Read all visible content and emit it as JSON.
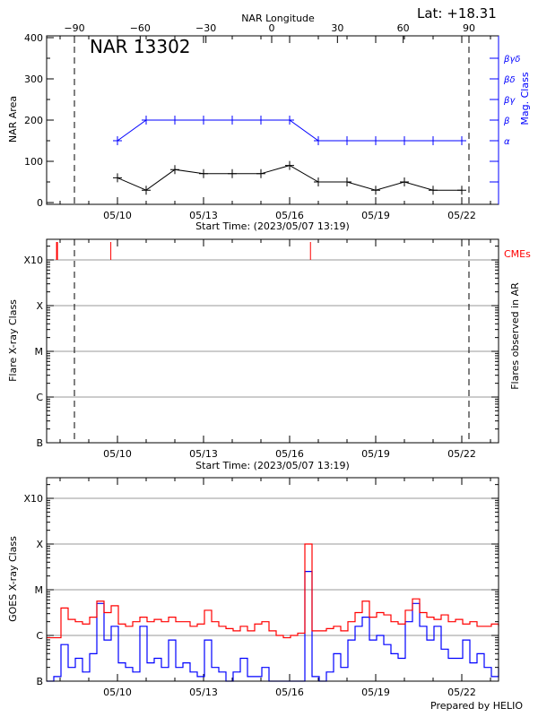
{
  "chart_data": [
    {
      "type": "line",
      "title": "NAR 13302",
      "latitude_label": "Lat: +18.31",
      "top_axis": {
        "label": "NAR Longitude",
        "ticks": [
          "-90",
          "-60",
          "-30",
          "0",
          "30",
          "60",
          "90"
        ],
        "range": [
          -90,
          90
        ]
      },
      "xlabel": "Start Time: (2023/05/07 13:19)",
      "x_ticks": [
        "05/10",
        "05/13",
        "05/16",
        "05/19",
        "05/22"
      ],
      "ylabel": "NAR Area",
      "y_ticks": [
        "0",
        "100",
        "200",
        "300",
        "400"
      ],
      "ylim": [
        0,
        400
      ],
      "y2label": "Mag. Class",
      "y2_ticks": [
        "α",
        "β",
        "βγ",
        "βδ",
        "βγδ"
      ],
      "x": [
        "05/10",
        "05/11",
        "05/12",
        "05/13",
        "05/14",
        "05/15",
        "05/16",
        "05/17",
        "05/18",
        "05/19",
        "05/20",
        "05/21",
        "05/22"
      ],
      "series": [
        {
          "name": "NAR Area",
          "color": "#000000",
          "values": [
            60,
            30,
            80,
            70,
            70,
            70,
            90,
            50,
            50,
            30,
            50,
            30,
            30
          ]
        },
        {
          "name": "Mag. Class",
          "color": "#0000ff",
          "values": [
            "α",
            "β",
            "β",
            "β",
            "β",
            "β",
            "β",
            "α",
            "α",
            "α",
            "α",
            "α",
            "α"
          ]
        }
      ],
      "limb_longitudes": [
        -90,
        90
      ]
    },
    {
      "type": "scatter",
      "xlabel": "Start Time: (2023/05/07 13:19)",
      "x_ticks": [
        "05/10",
        "05/13",
        "05/16",
        "05/19",
        "05/22"
      ],
      "ylabel": "Flare X-ray Class",
      "y_ticks": [
        "B",
        "C",
        "M",
        "X",
        "X10"
      ],
      "y2label": "Flares observed in AR",
      "cme_label": "CMEs",
      "cme_color": "#ff0000",
      "cme_times": [
        "05/07 22:00",
        "05/09 19:00",
        "05/16 18:00"
      ],
      "flares": [],
      "grid": true
    },
    {
      "type": "line",
      "xlabel": "",
      "x_ticks": [
        "05/10",
        "05/13",
        "05/16",
        "05/19",
        "05/22"
      ],
      "ylabel": "GOES X-ray Class",
      "y_ticks": [
        "B",
        "C",
        "M",
        "X",
        "X10"
      ],
      "grid": true,
      "start": "2023/05/07 13:19",
      "sample_interval_hours": 6,
      "series": [
        {
          "color": "#ff0000",
          "values": [
            0.95,
            0.95,
            1.6,
            1.35,
            1.3,
            1.25,
            1.4,
            1.75,
            1.5,
            1.65,
            1.25,
            1.2,
            1.3,
            1.4,
            1.3,
            1.35,
            1.3,
            1.4,
            1.3,
            1.3,
            1.2,
            1.25,
            1.55,
            1.3,
            1.2,
            1.15,
            1.1,
            1.2,
            1.1,
            1.25,
            1.3,
            1.1,
            1.0,
            0.95,
            1.0,
            1.05,
            3.0,
            1.1,
            1.1,
            1.15,
            1.2,
            1.1,
            1.3,
            1.5,
            1.75,
            1.4,
            1.5,
            1.45,
            1.3,
            1.25,
            1.55,
            1.8,
            1.5,
            1.4,
            1.35,
            1.45,
            1.3,
            1.35,
            1.25,
            1.3,
            1.2,
            1.2,
            1.25,
            1.2
          ]
        },
        {
          "color": "#0000ff",
          "values": [
            0,
            0.1,
            0.8,
            0.3,
            0.5,
            0.2,
            0.6,
            1.7,
            0.9,
            1.2,
            0.4,
            0.3,
            0.2,
            1.2,
            0.4,
            0.5,
            0.3,
            0.9,
            0.3,
            0.4,
            0.2,
            0.1,
            0.9,
            0.3,
            0.2,
            0,
            0.2,
            0.5,
            0.1,
            0.1,
            0.3,
            0,
            0,
            0,
            0,
            0,
            2.4,
            0.1,
            0,
            0.2,
            0.6,
            0.3,
            0.9,
            1.2,
            1.4,
            0.9,
            1.0,
            0.8,
            0.6,
            0.5,
            1.3,
            1.7,
            1.2,
            0.9,
            1.2,
            0.7,
            0.5,
            0.5,
            0.9,
            0.4,
            0.6,
            0.3,
            0.1,
            0.3
          ]
        }
      ]
    }
  ],
  "footer": "Prepared by HELIO"
}
